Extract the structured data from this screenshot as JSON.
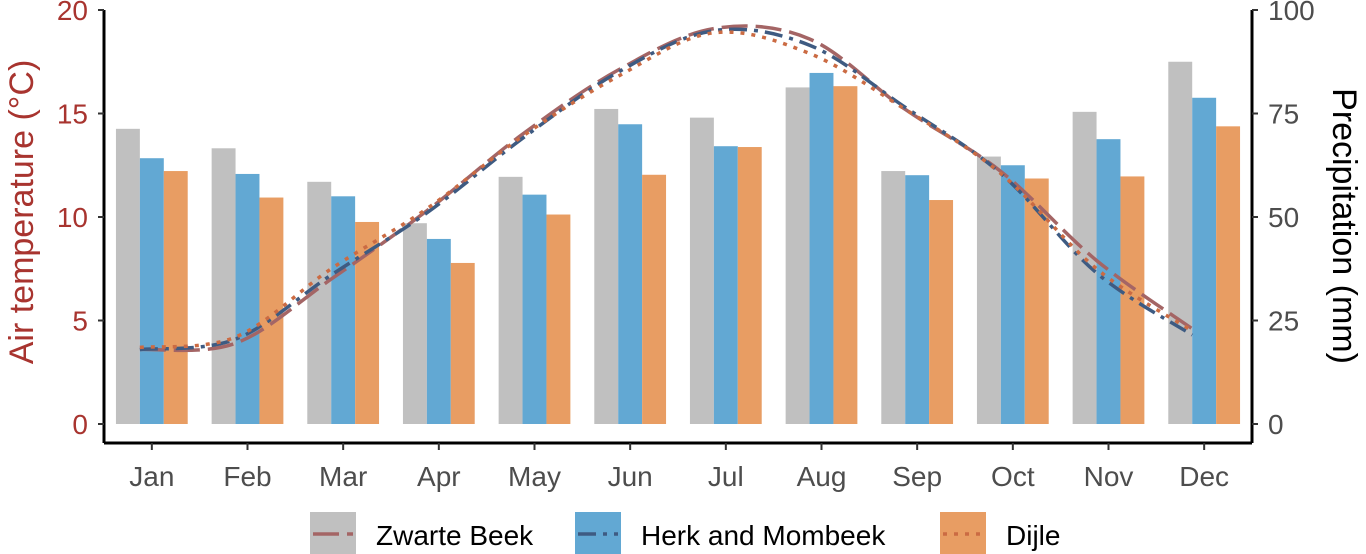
{
  "chart_data": {
    "type": "bar+line",
    "categories": [
      "Jan",
      "Feb",
      "Mar",
      "Apr",
      "May",
      "Jun",
      "Jul",
      "Aug",
      "Sep",
      "Oct",
      "Nov",
      "Dec"
    ],
    "y_left": {
      "label": "Air temperature (°C)",
      "lim": [
        0,
        20
      ],
      "ticks": [
        "0",
        "5",
        "10",
        "15",
        "20"
      ]
    },
    "y_right": {
      "label": "Precipitation (mm)",
      "lim": [
        0,
        100
      ],
      "ticks": [
        "0",
        "25",
        "50",
        "75",
        "100"
      ]
    },
    "series": [
      {
        "name": "Zwarte Beek",
        "bar_color": "#c0c0c0",
        "line_color": "#a46565",
        "line_dash": "26 8",
        "precipitation": [
          71.3,
          66.6,
          58.5,
          48.5,
          59.7,
          76.1,
          74.0,
          81.3,
          61.1,
          64.6,
          75.4,
          87.5
        ],
        "temperature": [
          3.6,
          3.9,
          7.0,
          10.3,
          14.0,
          17.1,
          19.1,
          18.6,
          15.2,
          12.2,
          7.9,
          4.6
        ]
      },
      {
        "name": "Herk and Mombeek",
        "bar_color": "#62a8d3",
        "line_color": "#3e5b82",
        "line_dash": "18 7 4 7",
        "precipitation": [
          64.2,
          60.4,
          55.0,
          44.7,
          55.4,
          72.4,
          67.1,
          84.8,
          60.1,
          62.5,
          68.8,
          78.8
        ],
        "temperature": [
          3.6,
          4.1,
          7.2,
          10.2,
          13.8,
          17.0,
          19.0,
          18.3,
          15.3,
          12.1,
          7.3,
          4.3
        ]
      },
      {
        "name": "Dijle",
        "bar_color": "#e89d63",
        "line_color": "#cb6b43",
        "line_dash": "4 7",
        "precipitation": [
          61.1,
          54.7,
          48.8,
          38.9,
          50.6,
          60.2,
          66.9,
          81.6,
          54.1,
          59.3,
          59.8,
          71.9
        ],
        "temperature": [
          3.7,
          4.2,
          7.5,
          10.4,
          13.9,
          16.8,
          18.9,
          17.9,
          15.2,
          12.1,
          7.5,
          4.5
        ]
      }
    ],
    "legend": "bottom",
    "grid": false
  }
}
